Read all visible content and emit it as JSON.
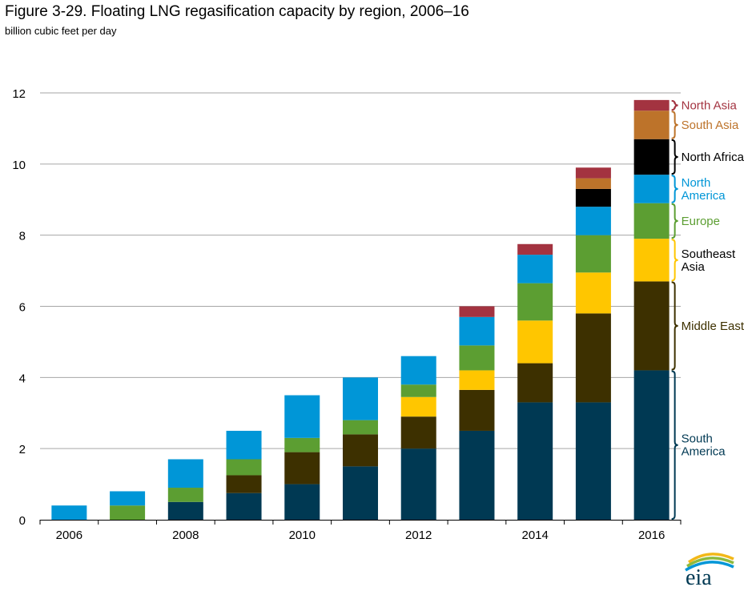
{
  "title": "Figure 3-29. Floating LNG regasification capacity by region, 2006–16",
  "subtitle": "billion cubic feet per day",
  "logo_text": "eia",
  "chart_data": {
    "type": "bar",
    "stacked": true,
    "categories": [
      "2006",
      "2007",
      "2008",
      "2009",
      "2010",
      "2011",
      "2012",
      "2013",
      "2014",
      "2015",
      "2016"
    ],
    "x_tick_labels": [
      "2006",
      "",
      "2008",
      "",
      "2010",
      "",
      "2012",
      "",
      "2014",
      "",
      "2016"
    ],
    "ylim": [
      0,
      12
    ],
    "y_ticks": [
      0,
      2,
      4,
      6,
      8,
      10,
      12
    ],
    "grid": true,
    "legend_placement": "right, as bracketed labels next to the last bar",
    "series": [
      {
        "name": "South America",
        "color": "#003953",
        "label_color": "#003953",
        "values": [
          0,
          0,
          0.5,
          0.75,
          1.0,
          1.5,
          2.0,
          2.5,
          3.3,
          3.3,
          4.2
        ]
      },
      {
        "name": "Middle East",
        "color": "#3D3000",
        "label_color": "#3D3000",
        "values": [
          0,
          0,
          0,
          0.5,
          0.9,
          0.9,
          0.9,
          1.15,
          1.1,
          2.5,
          2.5
        ]
      },
      {
        "name": "Southeast Asia",
        "color": "#FFC600",
        "label_color": "#000000",
        "values": [
          0,
          0,
          0,
          0,
          0,
          0,
          0.55,
          0.55,
          1.2,
          1.15,
          1.2
        ]
      },
      {
        "name": "Europe",
        "color": "#5C9E32",
        "label_color": "#5C9E32",
        "values": [
          0,
          0.4,
          0.4,
          0.45,
          0.4,
          0.4,
          0.35,
          0.7,
          1.05,
          1.05,
          1.0
        ]
      },
      {
        "name": "North America",
        "color": "#0096D7",
        "label_color": "#0096D7",
        "values": [
          0.4,
          0.4,
          0.8,
          0.8,
          1.2,
          1.2,
          0.8,
          0.8,
          0.8,
          0.8,
          0.8
        ]
      },
      {
        "name": "North Africa",
        "color": "#000000",
        "label_color": "#000000",
        "values": [
          0,
          0,
          0,
          0,
          0,
          0,
          0,
          0,
          0,
          0.5,
          1.0
        ]
      },
      {
        "name": "South Asia",
        "color": "#BD732A",
        "label_color": "#BD732A",
        "values": [
          0,
          0,
          0,
          0,
          0,
          0,
          0,
          0,
          0,
          0.3,
          0.8
        ]
      },
      {
        "name": "North Asia",
        "color": "#A33340",
        "label_color": "#A33340",
        "values": [
          0,
          0,
          0,
          0,
          0,
          0,
          0,
          0.3,
          0.3,
          0.3,
          0.3
        ]
      }
    ],
    "legend_labels": [
      {
        "series": "South America",
        "lines": [
          "South",
          "America"
        ]
      },
      {
        "series": "Middle East",
        "lines": [
          "Middle East"
        ]
      },
      {
        "series": "Southeast Asia",
        "lines": [
          "Southeast",
          "Asia"
        ]
      },
      {
        "series": "Europe",
        "lines": [
          "Europe"
        ]
      },
      {
        "series": "North America",
        "lines": [
          "North",
          "America"
        ]
      },
      {
        "series": "North Africa",
        "lines": [
          "North Africa"
        ]
      },
      {
        "series": "South Asia",
        "lines": [
          "South Asia"
        ]
      },
      {
        "series": "North Asia",
        "lines": [
          "North Asia"
        ]
      }
    ]
  }
}
